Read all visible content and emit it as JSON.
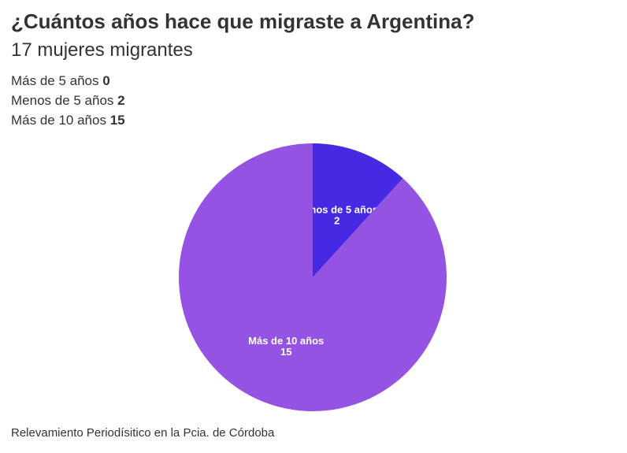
{
  "chart_data": {
    "type": "pie",
    "title": "¿Cuántos años hace que migraste a Argentina?",
    "subtitle": "17 mujeres migrantes",
    "categories": [
      "Más de 5 años",
      "Menos de 5 años",
      "Más de 10 años"
    ],
    "values": [
      0,
      2,
      15
    ],
    "colors": [
      "#7b5cd6",
      "#4629e3",
      "#9453e3"
    ],
    "legend_position": "top-left",
    "slice_order": [
      1,
      2
    ]
  },
  "footer": "Relevamiento Periodísitico en la Pcia. de Córdoba"
}
